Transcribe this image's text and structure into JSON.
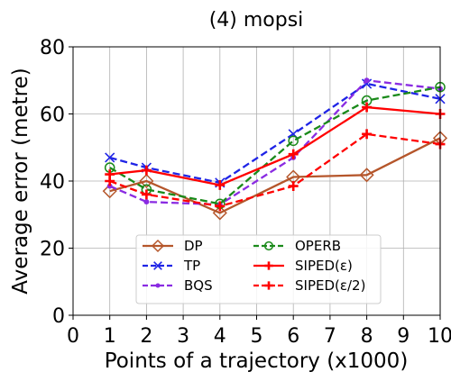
{
  "chart_data": {
    "type": "line",
    "title": "(4) mopsi",
    "xlabel": "Points of a trajectory (x1000)",
    "ylabel": "Average error (metre)",
    "xlim": [
      0,
      10
    ],
    "ylim": [
      0,
      80
    ],
    "xticks": [
      0,
      1,
      2,
      3,
      4,
      5,
      6,
      7,
      8,
      9,
      10
    ],
    "yticks": [
      0,
      20,
      40,
      60,
      80
    ],
    "x": [
      1,
      2,
      4,
      6,
      8,
      10
    ],
    "grid": true,
    "legend_position": "bottom-center",
    "series": [
      {
        "name": "DP",
        "values": [
          37.0,
          40.0,
          30.5,
          41.2,
          41.8,
          52.8
        ],
        "color": "#b5562b",
        "dash": "solid",
        "marker": "diamond-open"
      },
      {
        "name": "TP",
        "values": [
          47.0,
          44.0,
          39.5,
          54.0,
          69.0,
          64.5
        ],
        "color": "#1f24e6",
        "dash": "dashed",
        "marker": "x"
      },
      {
        "name": "BQS",
        "values": [
          38.5,
          33.8,
          33.0,
          47.0,
          70.0,
          67.5
        ],
        "color": "#8a2be2",
        "dash": "dashed",
        "marker": "dot"
      },
      {
        "name": "OPERB",
        "values": [
          44.0,
          37.5,
          33.2,
          52.0,
          64.0,
          68.0
        ],
        "color": "#1a8a1a",
        "dash": "dashed",
        "marker": "circle-open"
      },
      {
        "name": "SIPED(ε)",
        "values": [
          42.0,
          43.2,
          38.8,
          48.0,
          62.0,
          60.0
        ],
        "color": "#ff0000",
        "dash": "solid",
        "marker": "plus"
      },
      {
        "name": "SIPED(ε/2)",
        "values": [
          40.0,
          36.0,
          32.5,
          38.5,
          54.0,
          51.0
        ],
        "color": "#ff0000",
        "dash": "dashed",
        "marker": "plus"
      }
    ]
  }
}
